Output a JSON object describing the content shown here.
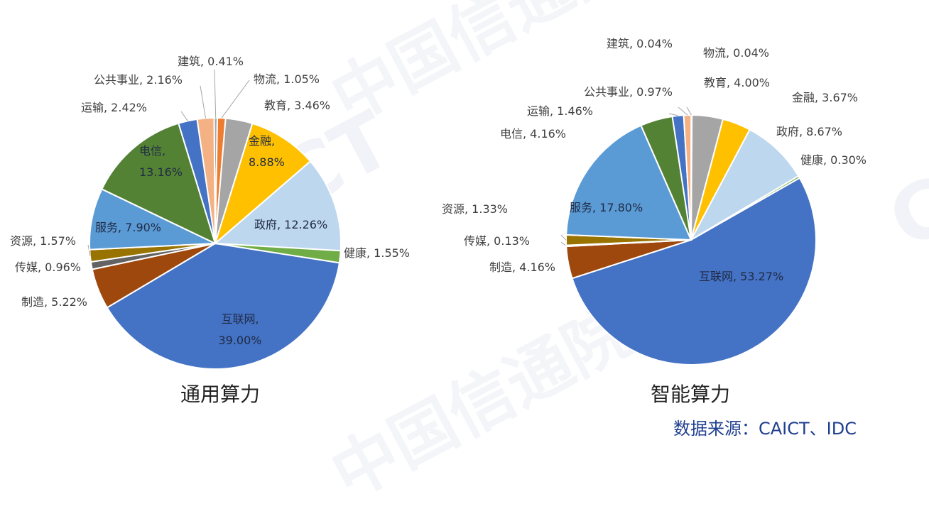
{
  "chart_data": [
    {
      "type": "pie",
      "title": "通用算力",
      "slices": [
        {
          "name": "建筑",
          "label": "建筑, 0.41%",
          "value": 0.41,
          "color": "#a5a5a5"
        },
        {
          "name": "物流",
          "label": "物流, 1.05%",
          "value": 1.05,
          "color": "#ed7d31"
        },
        {
          "name": "教育",
          "label": "教育, 3.46%",
          "value": 3.46,
          "color": "#a5a5a5"
        },
        {
          "name": "金融",
          "label": "金融,\n8.88%",
          "value": 8.88,
          "color": "#ffc000"
        },
        {
          "name": "政府",
          "label": "政府, 12.26%",
          "value": 12.26,
          "color": "#bdd7ee"
        },
        {
          "name": "健康",
          "label": "健康, 1.55%",
          "value": 1.55,
          "color": "#70ad47"
        },
        {
          "name": "互联网",
          "label": "互联网,\n39.00%",
          "value": 39.0,
          "color": "#4472c4"
        },
        {
          "name": "制造",
          "label": "制造, 5.22%",
          "value": 5.22,
          "color": "#9e480e"
        },
        {
          "name": "传媒",
          "label": "传媒, 0.96%",
          "value": 0.96,
          "color": "#636363"
        },
        {
          "name": "资源",
          "label": "资源, 1.57%",
          "value": 1.57,
          "color": "#997300"
        },
        {
          "name": "服务",
          "label": "服务, 7.90%",
          "value": 7.9,
          "color": "#5b9bd5"
        },
        {
          "name": "电信",
          "label": "电信,\n13.16%",
          "value": 13.16,
          "color": "#548235"
        },
        {
          "name": "运输",
          "label": "运输, 2.42%",
          "value": 2.42,
          "color": "#4472c4"
        },
        {
          "name": "公共事业",
          "label": "公共事业, 2.16%",
          "value": 2.16,
          "color": "#f4b183"
        }
      ]
    },
    {
      "type": "pie",
      "title": "智能算力",
      "slices": [
        {
          "name": "物流",
          "label": "物流, 0.04%",
          "value": 0.04,
          "color": "#ed7d31"
        },
        {
          "name": "教育",
          "label": "教育, 4.00%",
          "value": 4.0,
          "color": "#a5a5a5"
        },
        {
          "name": "金融",
          "label": "金融, 3.67%",
          "value": 3.67,
          "color": "#ffc000"
        },
        {
          "name": "政府",
          "label": "政府, 8.67%",
          "value": 8.67,
          "color": "#bdd7ee"
        },
        {
          "name": "健康",
          "label": "健康, 0.30%",
          "value": 0.3,
          "color": "#70ad47"
        },
        {
          "name": "互联网",
          "label": "互联网, 53.27%",
          "value": 53.27,
          "color": "#4472c4"
        },
        {
          "name": "制造",
          "label": "制造, 4.16%",
          "value": 4.16,
          "color": "#9e480e"
        },
        {
          "name": "传媒",
          "label": "传媒, 0.13%",
          "value": 0.13,
          "color": "#636363"
        },
        {
          "name": "资源",
          "label": "资源, 1.33%",
          "value": 1.33,
          "color": "#997300"
        },
        {
          "name": "服务",
          "label": "服务, 17.80%",
          "value": 17.8,
          "color": "#5b9bd5"
        },
        {
          "name": "电信",
          "label": "电信, 4.16%",
          "value": 4.16,
          "color": "#548235"
        },
        {
          "name": "运输",
          "label": "运输, 1.46%",
          "value": 1.46,
          "color": "#4472c4"
        },
        {
          "name": "公共事业",
          "label": "公共事业, 0.97%",
          "value": 0.97,
          "color": "#f4b183"
        },
        {
          "name": "建筑",
          "label": "建筑, 0.04%",
          "value": 0.04,
          "color": "#a5a5a5"
        }
      ]
    }
  ],
  "source": "数据来源：CAICT、IDC",
  "watermark": {
    "logo": "CAICT",
    "text": "中国信通院"
  }
}
